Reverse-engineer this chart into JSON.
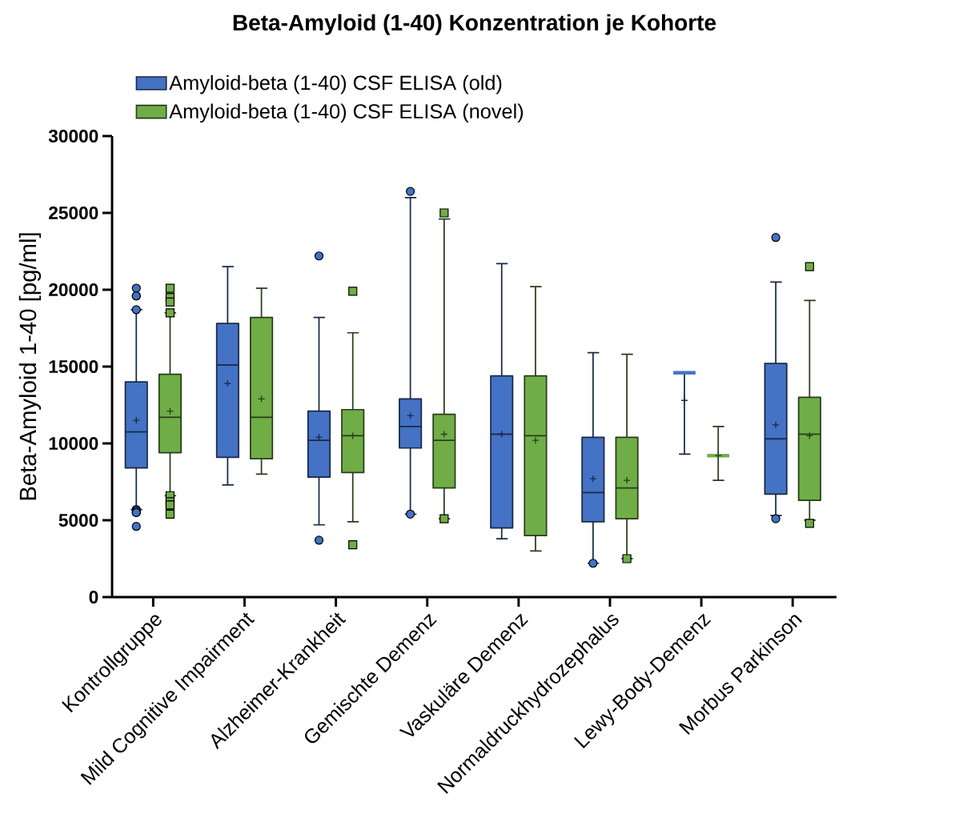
{
  "chart_data": {
    "type": "box",
    "title": "Beta-Amyloid (1-40) Konzentration je Kohorte",
    "ylabel": "Beta-Amyloid 1-40 [pg/ml]",
    "categories": [
      "Kontrollgruppe",
      "Mild Cognitive Impairment",
      "Alzheimer-Krankheit",
      "Gemischte Demenz",
      "Vaskuläre Demenz",
      "Normaldruckhydrozephalus",
      "Lewy-Body-Demenz",
      "Morbus Parkinson"
    ],
    "ylim": [
      0,
      30000
    ],
    "yticks": [
      0,
      5000,
      10000,
      15000,
      20000,
      25000,
      30000
    ],
    "legend": "top",
    "series": [
      {
        "name": "Amyloid-beta (1-40) CSF ELISA (old)",
        "color": "#4472c4",
        "marker": "circle",
        "boxes": [
          {
            "low": 5700,
            "q1": 8400,
            "median": 10750,
            "q3": 14000,
            "high": 18700,
            "mean": 11500,
            "outliers": [
              20100,
              19600,
              19600,
              18700,
              5700,
              5600,
              5500,
              5500,
              4600
            ]
          },
          {
            "low": 7300,
            "q1": 9100,
            "median": 15100,
            "q3": 17800,
            "high": 21500,
            "mean": 13900
          },
          {
            "low": 4700,
            "q1": 7800,
            "median": 10200,
            "q3": 12100,
            "high": 18200,
            "mean": 10400,
            "outliers": [
              22200,
              3700
            ]
          },
          {
            "low": 5400,
            "q1": 9700,
            "median": 11100,
            "q3": 12900,
            "high": 26000,
            "mean": 11800,
            "outliers": [
              26400,
              5400
            ]
          },
          {
            "low": 3800,
            "q1": 4500,
            "median": 10600,
            "q3": 14400,
            "high": 21700,
            "mean": 10600
          },
          {
            "low": 2200,
            "q1": 4900,
            "median": 6800,
            "q3": 10400,
            "high": 15900,
            "mean": 7700,
            "outliers": [
              2200
            ]
          },
          {
            "low": 9300,
            "q1": 14600,
            "median": 14600,
            "q3": 14600,
            "high": 14600,
            "mean": 12800
          },
          {
            "low": 5300,
            "q1": 6700,
            "median": 10300,
            "q3": 15200,
            "high": 20500,
            "mean": 11200,
            "outliers": [
              23400,
              5100
            ]
          }
        ]
      },
      {
        "name": "Amyloid-beta (1-40) CSF ELISA (novel)",
        "color": "#70ad47",
        "marker": "square",
        "boxes": [
          {
            "low": 6600,
            "q1": 9400,
            "median": 11700,
            "q3": 14500,
            "high": 18500,
            "mean": 12100,
            "outliers": [
              20100,
              19500,
              19200,
              18500,
              6600,
              6200,
              6000,
              6000,
              5400
            ]
          },
          {
            "low": 8000,
            "q1": 9000,
            "median": 11700,
            "q3": 18200,
            "high": 20100,
            "mean": 12900
          },
          {
            "low": 4900,
            "q1": 8100,
            "median": 10500,
            "q3": 12200,
            "high": 17200,
            "mean": 10500,
            "outliers": [
              19900,
              3400
            ]
          },
          {
            "low": 5100,
            "q1": 7100,
            "median": 10200,
            "q3": 11900,
            "high": 24600,
            "mean": 10600,
            "outliers": [
              25000,
              5100
            ]
          },
          {
            "low": 3000,
            "q1": 4000,
            "median": 10500,
            "q3": 14400,
            "high": 20200,
            "mean": 10200
          },
          {
            "low": 2500,
            "q1": 5100,
            "median": 7100,
            "q3": 10400,
            "high": 15800,
            "mean": 7600,
            "outliers": [
              2500
            ]
          },
          {
            "low": 7600,
            "q1": 9200,
            "median": 9200,
            "q3": 9200,
            "high": 11100,
            "mean": 9200
          },
          {
            "low": 5000,
            "q1": 6300,
            "median": 10600,
            "q3": 13000,
            "high": 19300,
            "mean": 10500,
            "outliers": [
              21500,
              4800
            ]
          }
        ]
      }
    ]
  }
}
